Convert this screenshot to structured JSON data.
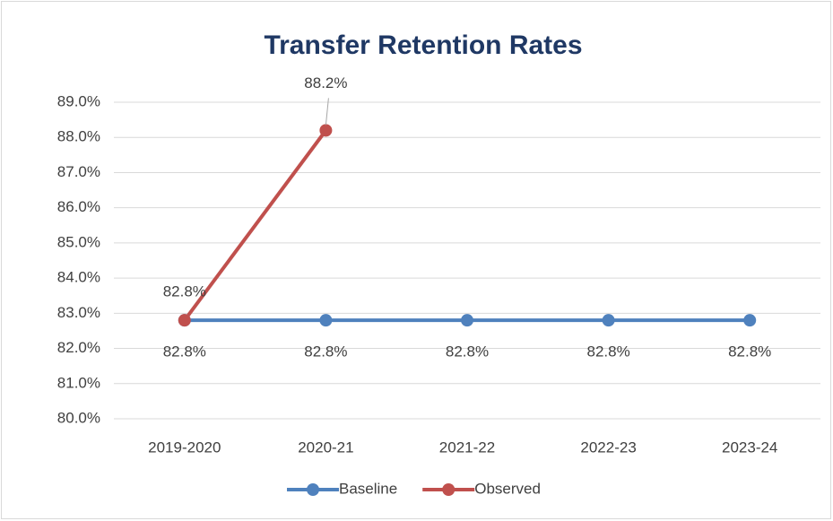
{
  "chart_data": {
    "type": "line",
    "title": "Transfer Retention Rates",
    "categories": [
      "2019-2020",
      "2020-21",
      "2021-22",
      "2022-23",
      "2023-24"
    ],
    "series": [
      {
        "name": "Baseline",
        "color": "#4f81bd",
        "values": [
          82.8,
          82.8,
          82.8,
          82.8,
          82.8
        ],
        "value_labels": [
          "82.8%",
          "82.8%",
          "82.8%",
          "82.8%",
          "82.8%"
        ]
      },
      {
        "name": "Observed",
        "color": "#c0504d",
        "values": [
          82.8,
          88.2,
          null,
          null,
          null
        ],
        "value_labels": [
          "82.8%",
          "88.2%",
          null,
          null,
          null
        ]
      }
    ],
    "ylim": [
      80,
      89
    ],
    "yticks": [
      {
        "value": 80,
        "label": "80.0%"
      },
      {
        "value": 81,
        "label": "81.0%"
      },
      {
        "value": 82,
        "label": "82.0%"
      },
      {
        "value": 83,
        "label": "83.0%"
      },
      {
        "value": 84,
        "label": "84.0%"
      },
      {
        "value": 85,
        "label": "85.0%"
      },
      {
        "value": 86,
        "label": "86.0%"
      },
      {
        "value": 87,
        "label": "87.0%"
      },
      {
        "value": 88,
        "label": "88.0%"
      },
      {
        "value": 89,
        "label": "89.0%"
      }
    ],
    "grid": true,
    "legend": "bottom"
  }
}
